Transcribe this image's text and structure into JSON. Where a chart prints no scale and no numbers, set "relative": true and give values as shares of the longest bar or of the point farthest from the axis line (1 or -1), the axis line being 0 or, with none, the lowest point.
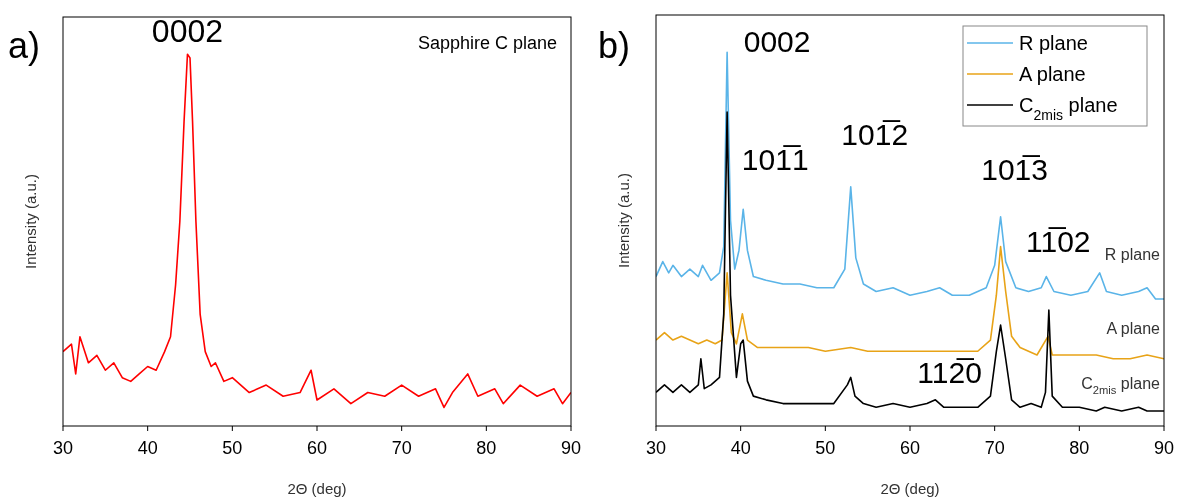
{
  "chart_data": [
    {
      "type": "line",
      "title": "a)",
      "relative": true,
      "xlabel": "2Θ (deg)",
      "ylabel": "Intensity (a.u.)",
      "xlim": [
        30,
        90
      ],
      "xticks": [
        30,
        40,
        50,
        60,
        70,
        80,
        90
      ],
      "legend": false,
      "grid": false,
      "annotations": [
        "Sapphire C plane",
        {
          "text": "0002",
          "x": 44.7,
          "y": 1.0
        }
      ],
      "series": [
        {
          "color": "#ff0000",
          "x": [
            30,
            31,
            31.5,
            32,
            33,
            34,
            35,
            36,
            37,
            38,
            39,
            40,
            41,
            42,
            42.7,
            43.3,
            43.8,
            44.3,
            44.7,
            45.0,
            45.3,
            45.7,
            46.2,
            46.8,
            47.5,
            48,
            49,
            50,
            52,
            54,
            56,
            58,
            59.3,
            60,
            62,
            64,
            66,
            68,
            70,
            72,
            74,
            75,
            76,
            77.8,
            79,
            81,
            82,
            84,
            86,
            88,
            89,
            90
          ],
          "values": [
            0.2,
            0.22,
            0.14,
            0.24,
            0.17,
            0.19,
            0.15,
            0.17,
            0.13,
            0.12,
            0.14,
            0.16,
            0.15,
            0.2,
            0.24,
            0.38,
            0.55,
            0.82,
            1.0,
            0.99,
            0.82,
            0.55,
            0.3,
            0.2,
            0.16,
            0.17,
            0.12,
            0.13,
            0.09,
            0.11,
            0.08,
            0.09,
            0.15,
            0.07,
            0.1,
            0.06,
            0.09,
            0.08,
            0.11,
            0.08,
            0.1,
            0.05,
            0.09,
            0.14,
            0.08,
            0.1,
            0.06,
            0.11,
            0.08,
            0.1,
            0.06,
            0.09
          ]
        }
      ]
    },
    {
      "type": "line",
      "title": "b)",
      "relative": true,
      "xlabel": "2Θ (deg)",
      "ylabel": "Intensity (a.u.)",
      "xlim": [
        30,
        90
      ],
      "xticks": [
        30,
        40,
        50,
        60,
        70,
        80,
        90
      ],
      "legend": "top right",
      "grid": false,
      "annotations": [
        {
          "text": "0002",
          "x": 38.4,
          "y": 1.0
        },
        {
          "text": "101̅1",
          "x": 40.3,
          "y": 0.58
        },
        {
          "text": "101̅2",
          "x": 53.0,
          "y": 0.64
        },
        {
          "text": "101̅3",
          "x": 70.7,
          "y": 0.56
        },
        {
          "text": "11̅02",
          "x": 76.1,
          "y": 0.4
        },
        {
          "text": "112̅0",
          "x": 70.7,
          "y": 0.27
        },
        {
          "text": "R plane",
          "x": 90,
          "y": 0.34
        },
        {
          "text": "A plane",
          "x": 90,
          "y": 0.18
        },
        {
          "text": "C$_{2mis}$ plane",
          "x": 90,
          "y": 0.04
        }
      ],
      "series": [
        {
          "name": "R plane",
          "color": "#5ab4e8",
          "x": [
            30,
            30.8,
            31.5,
            32,
            33,
            34,
            35,
            35.5,
            36.5,
            37.5,
            38,
            38.4,
            38.8,
            39.3,
            39.8,
            40.3,
            40.8,
            41.5,
            43,
            45,
            47,
            49,
            51,
            52.3,
            53.0,
            53.6,
            54.5,
            56,
            58,
            60,
            62,
            63.5,
            65,
            67,
            69,
            70,
            70.7,
            71.3,
            72.5,
            74,
            75.5,
            76.1,
            77,
            79,
            81,
            82.4,
            83.2,
            85,
            87,
            88,
            89,
            90
          ],
          "values": [
            0.4,
            0.44,
            0.41,
            0.43,
            0.4,
            0.42,
            0.4,
            0.43,
            0.39,
            0.41,
            0.48,
            1.0,
            0.55,
            0.42,
            0.47,
            0.58,
            0.47,
            0.4,
            0.39,
            0.38,
            0.38,
            0.37,
            0.37,
            0.42,
            0.64,
            0.45,
            0.38,
            0.36,
            0.37,
            0.35,
            0.36,
            0.37,
            0.35,
            0.35,
            0.37,
            0.43,
            0.56,
            0.44,
            0.37,
            0.36,
            0.37,
            0.4,
            0.36,
            0.35,
            0.36,
            0.41,
            0.36,
            0.35,
            0.36,
            0.37,
            0.34,
            0.34
          ]
        },
        {
          "name": "A plane",
          "color": "#e8a317",
          "x": [
            30,
            31,
            32,
            33,
            34,
            35,
            36,
            37,
            37.8,
            38.4,
            38.9,
            39.5,
            40.2,
            40.8,
            42,
            44,
            46,
            48,
            50,
            53,
            55,
            58,
            60,
            63,
            66,
            68,
            69.5,
            70.2,
            70.7,
            71.3,
            72,
            73,
            75,
            76.3,
            76.8,
            78,
            80,
            82,
            84,
            86,
            88,
            90
          ],
          "values": [
            0.23,
            0.25,
            0.23,
            0.24,
            0.23,
            0.22,
            0.23,
            0.22,
            0.23,
            0.41,
            0.25,
            0.22,
            0.3,
            0.23,
            0.21,
            0.21,
            0.21,
            0.21,
            0.2,
            0.21,
            0.2,
            0.2,
            0.2,
            0.2,
            0.2,
            0.2,
            0.23,
            0.35,
            0.48,
            0.36,
            0.24,
            0.21,
            0.19,
            0.24,
            0.19,
            0.19,
            0.19,
            0.19,
            0.18,
            0.18,
            0.19,
            0.18
          ]
        },
        {
          "name": "C$_{2mis}$ plane",
          "color": "#000000",
          "x": [
            30,
            31,
            32,
            33,
            34,
            35,
            35.3,
            35.7,
            36.5,
            37.5,
            38,
            38.4,
            38.8,
            39.5,
            40.0,
            40.3,
            40.8,
            41.5,
            43,
            45,
            47,
            49,
            51,
            52.6,
            53.0,
            53.5,
            54.5,
            56,
            58,
            60,
            62,
            63,
            64,
            66,
            68,
            69.5,
            70.2,
            70.7,
            71.3,
            72,
            73,
            74.3,
            75.5,
            76.0,
            76.4,
            76.8,
            78,
            80,
            82,
            83,
            85,
            87,
            88,
            90
          ],
          "values": [
            0.09,
            0.11,
            0.09,
            0.11,
            0.09,
            0.11,
            0.18,
            0.1,
            0.11,
            0.13,
            0.3,
            0.84,
            0.35,
            0.13,
            0.22,
            0.23,
            0.12,
            0.08,
            0.07,
            0.06,
            0.06,
            0.06,
            0.06,
            0.11,
            0.13,
            0.08,
            0.06,
            0.05,
            0.06,
            0.05,
            0.06,
            0.07,
            0.05,
            0.05,
            0.05,
            0.08,
            0.2,
            0.27,
            0.18,
            0.07,
            0.05,
            0.06,
            0.05,
            0.09,
            0.31,
            0.08,
            0.05,
            0.05,
            0.04,
            0.05,
            0.04,
            0.05,
            0.04,
            0.04
          ]
        }
      ]
    }
  ]
}
